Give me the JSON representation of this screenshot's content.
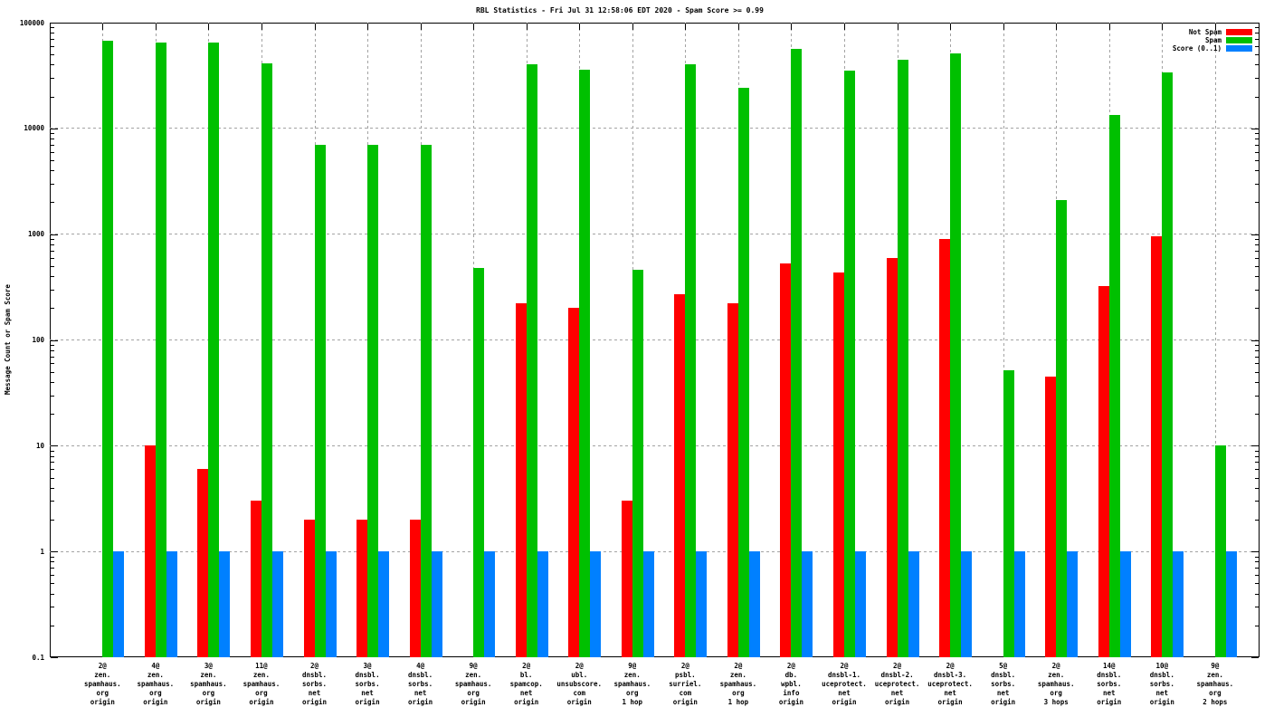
{
  "chart_data": {
    "type": "bar",
    "title": "RBL Statistics - Fri Jul 31 12:58:06 EDT 2020 - Spam Score >= 0.99",
    "xlabel": "",
    "ylabel": "Message Count or Spam Score",
    "y_scale": "log10",
    "ylim": [
      0.1,
      100000
    ],
    "y_ticks": {
      "labels": [
        "100000",
        "10000",
        "1000",
        "100",
        "10",
        "1",
        "0.1"
      ],
      "values": [
        100000,
        10000,
        1000,
        100,
        10,
        1,
        0.1
      ]
    },
    "grid": true,
    "legend_position": "top-right",
    "categories": [
      [
        "2@",
        "zen.",
        "spamhaus.",
        "org",
        "origin"
      ],
      [
        "4@",
        "zen.",
        "spamhaus.",
        "org",
        "origin"
      ],
      [
        "3@",
        "zen.",
        "spamhaus.",
        "org",
        "origin"
      ],
      [
        "11@",
        "zen.",
        "spamhaus.",
        "org",
        "origin"
      ],
      [
        "2@",
        "dnsbl.",
        "sorbs.",
        "net",
        "origin"
      ],
      [
        "3@",
        "dnsbl.",
        "sorbs.",
        "net",
        "origin"
      ],
      [
        "4@",
        "dnsbl.",
        "sorbs.",
        "net",
        "origin"
      ],
      [
        "9@",
        "zen.",
        "spamhaus.",
        "org",
        "origin"
      ],
      [
        "2@",
        "bl.",
        "spamcop.",
        "net",
        "origin"
      ],
      [
        "2@",
        "ubl.",
        "unsubscore.",
        "com",
        "origin"
      ],
      [
        "9@",
        "zen.",
        "spamhaus.",
        "org",
        "1 hop"
      ],
      [
        "2@",
        "psbl.",
        "surriel.",
        "com",
        "origin"
      ],
      [
        "2@",
        "zen.",
        "spamhaus.",
        "org",
        "1 hop"
      ],
      [
        "2@",
        "db.",
        "wpbl.",
        "info",
        "origin"
      ],
      [
        "2@",
        "dnsbl-1.",
        "uceprotect.",
        "net",
        "origin"
      ],
      [
        "2@",
        "dnsbl-2.",
        "uceprotect.",
        "net",
        "origin"
      ],
      [
        "2@",
        "dnsbl-3.",
        "uceprotect.",
        "net",
        "origin"
      ],
      [
        "5@",
        "dnsbl.",
        "sorbs.",
        "net",
        "origin"
      ],
      [
        "2@",
        "zen.",
        "spamhaus.",
        "org",
        "3 hops"
      ],
      [
        "14@",
        "dnsbl.",
        "sorbs.",
        "net",
        "origin"
      ],
      [
        "10@",
        "dnsbl.",
        "sorbs.",
        "net",
        "origin"
      ],
      [
        "9@",
        "zen.",
        "spamhaus.",
        "org",
        "2 hops"
      ]
    ],
    "series": [
      {
        "name": "Not Spam",
        "color": "#ff0000",
        "values": [
          0,
          10,
          6,
          3,
          2,
          2,
          2,
          0,
          220,
          200,
          3,
          270,
          220,
          530,
          430,
          590,
          900,
          0,
          45,
          320,
          950,
          0
        ]
      },
      {
        "name": "Spam",
        "color": "#00c000",
        "values": [
          68000,
          65000,
          65000,
          41000,
          7000,
          7000,
          7000,
          480,
          40000,
          36000,
          460,
          40000,
          24000,
          57000,
          35000,
          45000,
          51000,
          52,
          2100,
          13500,
          34000,
          10
        ]
      },
      {
        "name": "Score (0..1)",
        "color": "#0080ff",
        "values": [
          1,
          1,
          1,
          1,
          1,
          1,
          1,
          1,
          1,
          1,
          1,
          1,
          1,
          1,
          1,
          1,
          1,
          1,
          1,
          1,
          1,
          1
        ]
      }
    ],
    "colors": {
      "not_spam": "#ff0000",
      "spam": "#00c000",
      "score": "#0080ff",
      "grid": "#a3a3a3",
      "axis": "#000000",
      "background": "#ffffff"
    }
  }
}
